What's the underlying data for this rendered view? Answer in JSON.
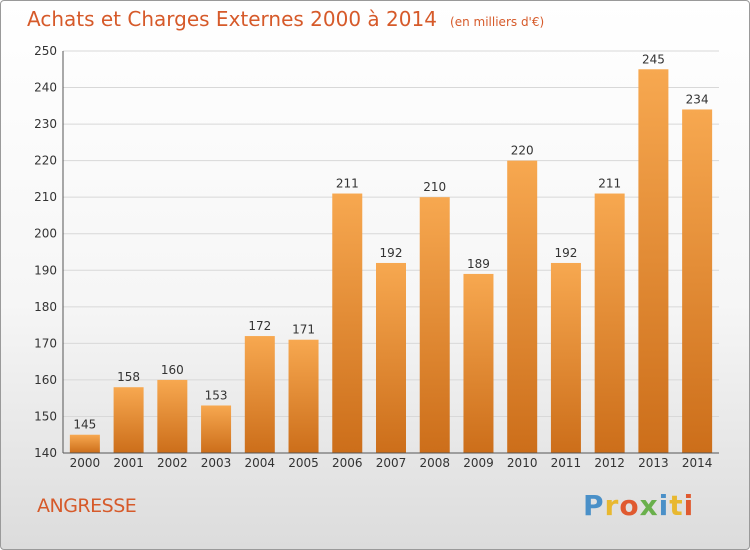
{
  "title": "Achats et Charges Externes 2000 à 2014",
  "unit_note": "(en milliers d'€)",
  "commune": "ANGRESSE",
  "logo": {
    "letters": [
      "P",
      "r",
      "o",
      "x",
      "i",
      "t",
      "i"
    ],
    "colors": [
      "#4a90c8",
      "#e8b830",
      "#e05a30",
      "#6ab04c",
      "#4a90c8",
      "#e8b830",
      "#e05a30"
    ]
  },
  "colors": {
    "bar_light": "#f7a850",
    "bar_dark": "#cc6e1a",
    "accent": "#d65a2a"
  },
  "chart_data": {
    "type": "bar",
    "categories": [
      "2000",
      "2001",
      "2002",
      "2003",
      "2004",
      "2005",
      "2006",
      "2007",
      "2008",
      "2009",
      "2010",
      "2011",
      "2012",
      "2013",
      "2014"
    ],
    "values": [
      145,
      158,
      160,
      153,
      172,
      171,
      211,
      192,
      210,
      189,
      220,
      192,
      211,
      245,
      234
    ],
    "ylim": [
      140,
      250
    ],
    "yticks": [
      140,
      150,
      160,
      170,
      180,
      190,
      200,
      210,
      220,
      230,
      240,
      250
    ],
    "grid": true,
    "data_labels": true
  }
}
